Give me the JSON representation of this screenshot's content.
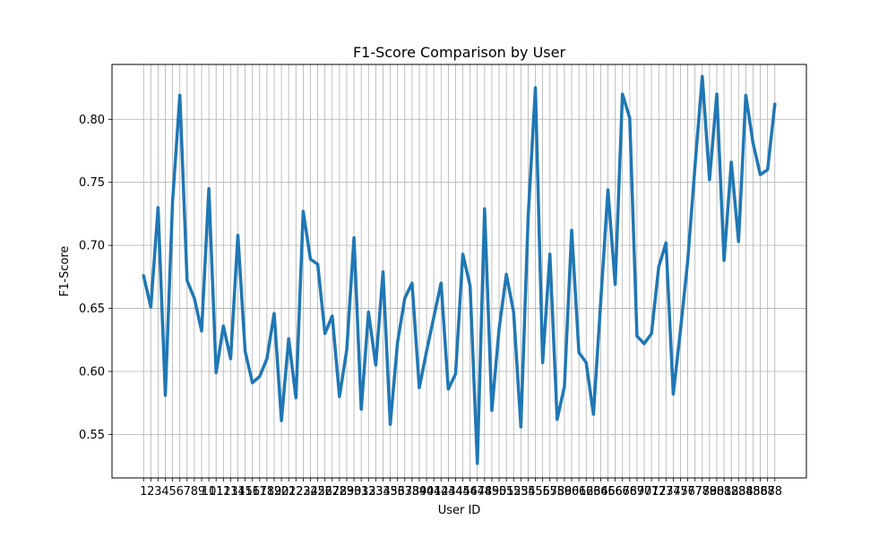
{
  "chart_data": {
    "type": "line",
    "title": "F1-Score Comparison by User",
    "xlabel": "User ID",
    "ylabel": "F1-Score",
    "grid": true,
    "legend": "none",
    "line_color": "#1f77b4",
    "ylim": [
      0.5155,
      0.8435
    ],
    "yticks": [
      0.55,
      0.6,
      0.65,
      0.7,
      0.75,
      0.8
    ],
    "ytick_labels": [
      "0.55",
      "0.60",
      "0.65",
      "0.70",
      "0.75",
      "0.80"
    ],
    "x": [
      1,
      2,
      3,
      4,
      5,
      6,
      7,
      8,
      9,
      10,
      11,
      12,
      13,
      14,
      15,
      16,
      17,
      18,
      19,
      20,
      21,
      22,
      23,
      24,
      25,
      26,
      27,
      28,
      29,
      30,
      31,
      32,
      33,
      34,
      35,
      36,
      37,
      38,
      39,
      40,
      41,
      42,
      43,
      44,
      45,
      46,
      47,
      48,
      49,
      50,
      51,
      52,
      53,
      54,
      55,
      56,
      57,
      58,
      59,
      60,
      61,
      62,
      63,
      64,
      65,
      66,
      67,
      68,
      69,
      70,
      71,
      72,
      73,
      74,
      75,
      76,
      77,
      78,
      79,
      80,
      81,
      82,
      83,
      84,
      85,
      86,
      87,
      88
    ],
    "x_tick_labels": [
      "1",
      "2",
      "3",
      "4",
      "5",
      "6",
      "7",
      "8",
      "9",
      "10",
      "11",
      "12",
      "13",
      "14",
      "15",
      "16",
      "17",
      "18",
      "19",
      "20",
      "21",
      "22",
      "23",
      "24",
      "25",
      "26",
      "27",
      "28",
      "29",
      "30",
      "31",
      "32",
      "33",
      "34",
      "35",
      "36",
      "37",
      "38",
      "39",
      "40",
      "41",
      "42",
      "43",
      "44",
      "45",
      "46",
      "47",
      "48",
      "49",
      "50",
      "51",
      "52",
      "53",
      "54",
      "55",
      "56",
      "57",
      "58",
      "59",
      "60",
      "61",
      "62",
      "63",
      "64",
      "65",
      "66",
      "67",
      "68",
      "69",
      "70",
      "71",
      "72",
      "73",
      "74",
      "75",
      "76",
      "77",
      "78",
      "79",
      "80",
      "81",
      "82",
      "83",
      "84",
      "85",
      "86",
      "87",
      "88"
    ],
    "values": [
      0.676,
      0.651,
      0.73,
      0.581,
      0.735,
      0.819,
      0.672,
      0.658,
      0.632,
      0.745,
      0.599,
      0.636,
      0.61,
      0.708,
      0.616,
      0.591,
      0.596,
      0.61,
      0.646,
      0.561,
      0.626,
      0.579,
      0.727,
      0.689,
      0.685,
      0.63,
      0.644,
      0.58,
      0.617,
      0.706,
      0.57,
      0.647,
      0.605,
      0.679,
      0.558,
      0.623,
      0.658,
      0.67,
      0.587,
      0.616,
      0.643,
      0.67,
      0.586,
      0.598,
      0.693,
      0.668,
      0.527,
      0.729,
      0.569,
      0.634,
      0.677,
      0.647,
      0.556,
      0.722,
      0.825,
      0.607,
      0.693,
      0.562,
      0.588,
      0.712,
      0.615,
      0.607,
      0.566,
      0.655,
      0.744,
      0.669,
      0.82,
      0.801,
      0.628,
      0.622,
      0.63,
      0.683,
      0.702,
      0.582,
      0.633,
      0.688,
      0.763,
      0.834,
      0.752,
      0.82,
      0.688,
      0.766,
      0.703,
      0.819,
      0.781,
      0.756,
      0.76,
      0.812
    ]
  }
}
